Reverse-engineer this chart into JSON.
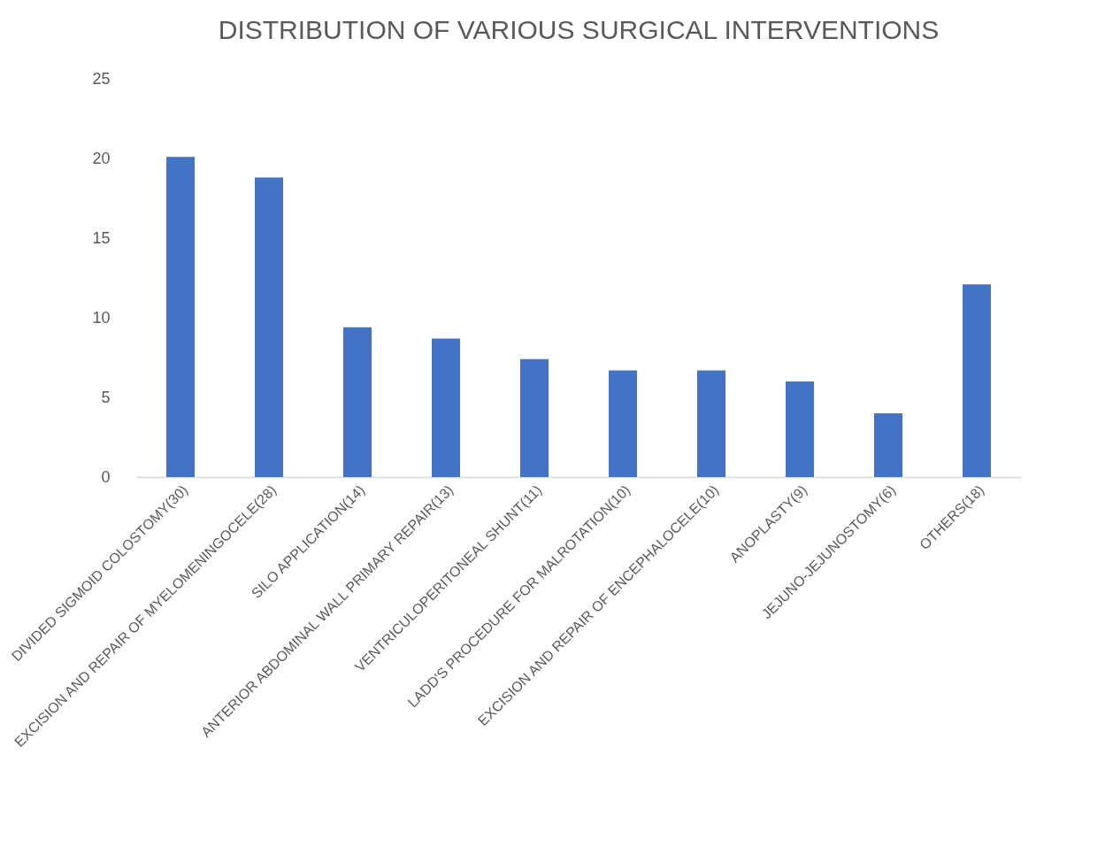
{
  "chart_data": {
    "type": "bar",
    "title": "DISTRIBUTION OF VARIOUS SURGICAL INTERVENTIONS",
    "categories": [
      "DIVIDED SIGMOID COLOSTOMY(30)",
      "EXCISION AND REPAIR OF MYELOMENINGOCELE(28)",
      "SILO APPLICATION(14)",
      "ANTERIOR ABDOMINAL WALL PRIMARY REPAIR(13)",
      "VENTRICULOPERITONEAL SHUNT(11)",
      "LADD'S PROCEDURE FOR MALROTATION(10)",
      "EXCISION AND REPAIR OF ENCEPHALOCELE(10)",
      "ANOPLASTY(9)",
      "JEJUNO-JEJUNOSTOMY(6)",
      "OTHERS(18)"
    ],
    "values": [
      20.1,
      18.8,
      9.4,
      8.7,
      7.4,
      6.7,
      6.7,
      6.0,
      4.0,
      12.1
    ],
    "color": "#4472c4",
    "ylim": [
      0,
      25
    ],
    "yticks": [
      0,
      5,
      10,
      15,
      20,
      25
    ],
    "grid": false
  }
}
